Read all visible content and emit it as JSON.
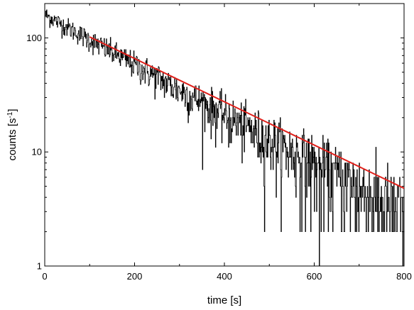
{
  "chart_data": {
    "type": "line",
    "xlabel": "time [s]",
    "ylabel": {
      "base": "counts [s",
      "sup": "-1",
      "close": "]"
    },
    "xlim": [
      0,
      800
    ],
    "ylim": [
      1,
      200
    ],
    "yscale": "log",
    "grid": false,
    "legend": "none",
    "x_ticks": [
      0,
      200,
      400,
      600,
      800
    ],
    "x_tick_labels": [
      "0",
      "200",
      "400",
      "600",
      "800"
    ],
    "y_ticks": [
      1,
      10,
      100
    ],
    "y_tick_labels": [
      "1",
      "10",
      "100"
    ],
    "series": [
      {
        "kind": "measured counts",
        "color": "#000000",
        "x_start": 1,
        "x_end": 800,
        "x_step": 1,
        "y0": 160,
        "decay_time": 198,
        "dips": [
          {
            "x": 611,
            "y": 1
          },
          {
            "x": 797,
            "y": 1
          },
          {
            "x": 800,
            "y": 1
          }
        ]
      },
      {
        "kind": "exponential fit",
        "color": "#e0201b",
        "x_start": 100,
        "x_end": 800,
        "y_start": 102,
        "y_end": 4.8
      }
    ]
  }
}
